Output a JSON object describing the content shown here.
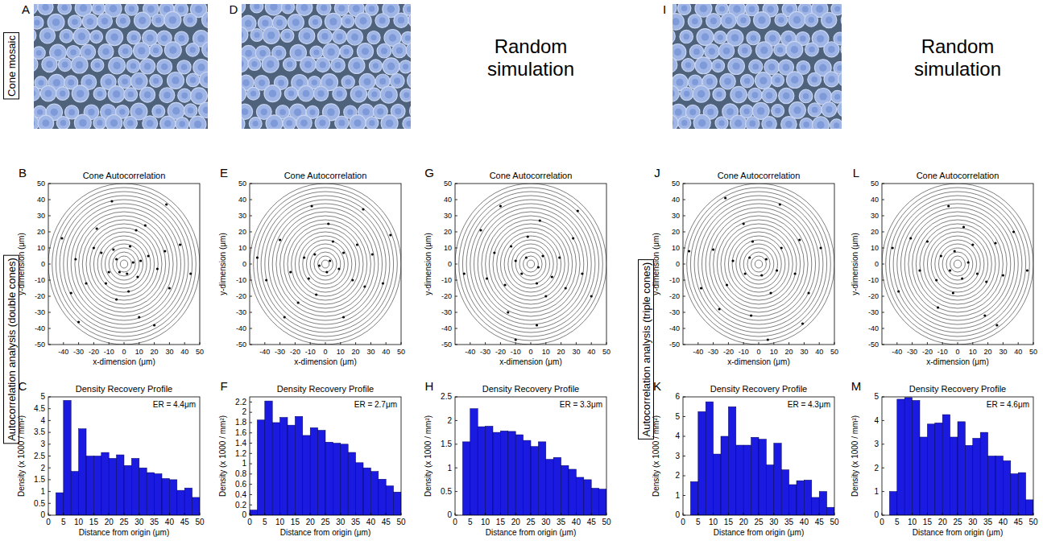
{
  "figure": {
    "image_letters": [
      "A",
      "D",
      "I"
    ],
    "chart_letters": [
      "B",
      "C",
      "E",
      "F",
      "G",
      "H",
      "J",
      "K",
      "L",
      "M"
    ],
    "side_labels": [
      "Cone mosaic",
      "Autocorrelation analysis (double cones)",
      "Autocorrelation analysis (triple cones)"
    ],
    "simulation_labels": [
      "Random simulation",
      "Random simulation"
    ]
  },
  "chart_data": [
    {
      "type": "scatter",
      "title": "Cone Autocorrelation",
      "xlabel": "x-dimension (μm)",
      "ylabel": "y-dimension (μm)",
      "xlim": [
        -50,
        50
      ],
      "ylim": [
        -50,
        50
      ],
      "xticks": [
        -40,
        -30,
        -20,
        -10,
        0,
        10,
        20,
        30,
        40,
        50
      ],
      "yticks": [
        -50,
        -40,
        -30,
        -20,
        -10,
        0,
        10,
        20,
        30,
        40,
        50
      ],
      "rings": [
        2.5,
        5,
        7.5,
        10,
        12.5,
        15,
        17.5,
        20,
        22.5,
        25,
        27.5,
        30,
        32.5,
        35,
        37.5,
        40,
        42.5,
        45,
        47.5,
        50
      ],
      "x": [
        6,
        -5,
        2,
        -3,
        11,
        -10,
        4,
        -7,
        9,
        16,
        -15,
        3,
        -12,
        22,
        -20,
        8,
        -5,
        27,
        -25,
        14,
        -18,
        30,
        -32,
        10,
        37,
        -35,
        -8,
        20,
        44,
        -41,
        28,
        -30
      ],
      "y": [
        1,
        3,
        -6,
        -5,
        2,
        -5,
        11,
        9,
        -8,
        5,
        7,
        -17,
        -12,
        -3,
        10,
        21,
        -22,
        8,
        -12,
        24,
        22,
        -15,
        3,
        -33,
        12,
        -18,
        39,
        -38,
        -6,
        16,
        37,
        -36
      ],
      "color": "#000000",
      "marker": "dot"
    },
    {
      "type": "histogram",
      "title": "Density Recovery Profile",
      "xlabel": "Distance from origin (μm)",
      "ylabel": "Density (x 1000 / mm²)",
      "annotation": "ER = 4.4μm",
      "bins": [
        0,
        2.5,
        5,
        7.5,
        10,
        12.5,
        15,
        17.5,
        20,
        22.5,
        25,
        27.5,
        30,
        32.5,
        35,
        37.5,
        40,
        42.5,
        45,
        47.5,
        50
      ],
      "values": [
        0,
        0.95,
        4.85,
        1.85,
        3.65,
        2.5,
        2.5,
        2.65,
        2.4,
        2.55,
        2.1,
        2.4,
        2.0,
        1.8,
        1.75,
        1.55,
        1.5,
        1.05,
        1.15,
        0.75
      ],
      "xlim": [
        0,
        50
      ],
      "ylim": [
        0,
        5
      ],
      "xticks": [
        0,
        5,
        10,
        15,
        20,
        25,
        30,
        35,
        40,
        45,
        50
      ],
      "yticks": [
        0,
        0.5,
        1,
        1.5,
        2,
        2.5,
        3,
        3.5,
        4,
        4.5,
        5
      ],
      "color": "#1a1ae0"
    },
    {
      "type": "scatter",
      "title": "Cone Autocorrelation",
      "xlabel": "x-dimension (μm)",
      "ylabel": "y-dimension (μm)",
      "xlim": [
        -50,
        50
      ],
      "ylim": [
        -50,
        50
      ],
      "xticks": [
        -40,
        -30,
        -20,
        -10,
        0,
        10,
        20,
        30,
        40,
        50
      ],
      "yticks": [
        -50,
        -40,
        -30,
        -20,
        -10,
        0,
        10,
        20,
        30,
        40,
        50
      ],
      "rings": [
        2.5,
        5,
        7.5,
        10,
        12.5,
        15,
        17.5,
        20,
        22.5,
        25,
        27.5,
        30,
        32.5,
        35,
        37.5,
        40,
        42.5,
        45,
        47.5,
        50
      ],
      "x": [
        3,
        -4,
        1,
        -7,
        9,
        12,
        -11,
        5,
        -14,
        18,
        -6,
        21,
        -23,
        2,
        26,
        -18,
        31,
        -30,
        12,
        -9,
        38,
        -39,
        25,
        -27,
        43,
        -45
      ],
      "y": [
        2,
        -1,
        -5,
        6,
        -3,
        7,
        -9,
        14,
        4,
        -10,
        -19,
        12,
        -5,
        25,
        -14,
        -24,
        6,
        15,
        -33,
        36,
        -12,
        -10,
        34,
        -33,
        18,
        4
      ],
      "color": "#000000",
      "marker": "dot"
    },
    {
      "type": "histogram",
      "title": "Density Recovery Profile",
      "xlabel": "Distance from origin (μm)",
      "ylabel": "Density (x 1000 / mm²)",
      "annotation": "ER = 2.7μm",
      "bins": [
        0,
        2.5,
        5,
        7.5,
        10,
        12.5,
        15,
        17.5,
        20,
        22.5,
        25,
        27.5,
        30,
        32.5,
        35,
        37.5,
        40,
        42.5,
        45,
        47.5,
        50
      ],
      "values": [
        0.1,
        1.85,
        2.22,
        1.8,
        1.9,
        1.75,
        1.92,
        1.55,
        1.7,
        1.65,
        1.42,
        1.4,
        1.38,
        1.22,
        1.02,
        0.92,
        0.85,
        0.7,
        0.57,
        0.45
      ],
      "xlim": [
        0,
        50
      ],
      "ylim": [
        0,
        2.3
      ],
      "xticks": [
        0,
        5,
        10,
        15,
        20,
        25,
        30,
        35,
        40,
        45,
        50
      ],
      "yticks": [
        0,
        0.2,
        0.4,
        0.6,
        0.8,
        1,
        1.2,
        1.4,
        1.6,
        1.8,
        2,
        2.2
      ],
      "color": "#1a1ae0"
    },
    {
      "type": "scatter",
      "title": "Cone Autocorrelation",
      "xlabel": "x-dimension (μm)",
      "ylabel": "y-dimension (μm)",
      "xlim": [
        -50,
        50
      ],
      "ylim": [
        -50,
        50
      ],
      "xticks": [
        -40,
        -30,
        -20,
        -10,
        0,
        10,
        20,
        30,
        40,
        50
      ],
      "yticks": [
        -50,
        -40,
        -30,
        -20,
        -10,
        0,
        10,
        20,
        30,
        40,
        50
      ],
      "rings": [
        2.5,
        5,
        7.5,
        10,
        12.5,
        15,
        17.5,
        20,
        22.5,
        25,
        27.5,
        30,
        32.5,
        35,
        37.5,
        40,
        42.5,
        45,
        47.5,
        50
      ],
      "x": [
        -3,
        5,
        -6,
        8,
        -10,
        4,
        14,
        -13,
        -2,
        19,
        -17,
        10,
        -24,
        23,
        6,
        -29,
        28,
        -15,
        34,
        -33,
        4,
        -20,
        40,
        -44,
        31,
        -10
      ],
      "y": [
        4,
        -2,
        -6,
        5,
        2,
        -12,
        -8,
        11,
        17,
        4,
        -13,
        -20,
        7,
        -15,
        27,
        -9,
        16,
        -30,
        -6,
        21,
        -38,
        36,
        -20,
        -6,
        33,
        -47
      ],
      "color": "#000000",
      "marker": "dot"
    },
    {
      "type": "histogram",
      "title": "Density Recovery Profile",
      "xlabel": "Distance from origin (μm)",
      "ylabel": "Density (x 1000 / mm²)",
      "annotation": "ER = 3.3μm",
      "bins": [
        0,
        2.5,
        5,
        7.5,
        10,
        12.5,
        15,
        17.5,
        20,
        22.5,
        25,
        27.5,
        30,
        32.5,
        35,
        37.5,
        40,
        42.5,
        45,
        47.5,
        50
      ],
      "values": [
        0,
        1.55,
        2.25,
        1.87,
        1.88,
        1.75,
        1.78,
        1.77,
        1.7,
        1.58,
        1.45,
        1.55,
        1.18,
        1.22,
        1.05,
        0.97,
        0.8,
        0.75,
        0.57,
        0.55
      ],
      "xlim": [
        0,
        50
      ],
      "ylim": [
        0,
        2.5
      ],
      "xticks": [
        0,
        5,
        10,
        15,
        20,
        25,
        30,
        35,
        40,
        45,
        50
      ],
      "yticks": [
        0,
        0.5,
        1,
        1.5,
        2,
        2.5
      ],
      "color": "#1a1ae0"
    },
    {
      "type": "scatter",
      "title": "Cone Autocorrelation",
      "xlabel": "x-dimension (μm)",
      "ylabel": "y-dimension (μm)",
      "xlim": [
        -50,
        50
      ],
      "ylim": [
        -50,
        50
      ],
      "xticks": [
        -40,
        -30,
        -20,
        -10,
        0,
        10,
        20,
        30,
        40,
        50
      ],
      "yticks": [
        -50,
        -40,
        -30,
        -20,
        -10,
        0,
        10,
        20,
        30,
        40,
        50
      ],
      "rings": [
        2.5,
        5,
        7.5,
        10,
        12.5,
        15,
        17.5,
        20,
        22.5,
        25,
        27.5,
        30,
        32.5,
        35,
        37.5,
        40,
        42.5,
        45,
        47.5,
        50
      ],
      "x": [
        5,
        -6,
        2,
        -9,
        12,
        -4,
        15,
        -17,
        8,
        -21,
        24,
        -10,
        27,
        -30,
        -5,
        33,
        -26,
        14,
        -38,
        41,
        -22,
        29,
        -46,
        6
      ],
      "y": [
        3,
        4,
        -7,
        -6,
        -4,
        14,
        10,
        2,
        -18,
        -13,
        -6,
        25,
        15,
        9,
        -32,
        -18,
        -28,
        37,
        -15,
        10,
        41,
        -37,
        8,
        -47
      ],
      "color": "#000000",
      "marker": "dot"
    },
    {
      "type": "histogram",
      "title": "Density Recovery Profile",
      "xlabel": "Distance from origin (μm)",
      "ylabel": "Density (x 1000 / mm²)",
      "annotation": "ER = 4.3μm",
      "bins": [
        0,
        2.5,
        5,
        7.5,
        10,
        12.5,
        15,
        17.5,
        20,
        22.5,
        25,
        27.5,
        30,
        32.5,
        35,
        37.5,
        40,
        42.5,
        45,
        47.5,
        50
      ],
      "values": [
        0,
        1.7,
        5.25,
        5.75,
        3.1,
        4.0,
        5.5,
        3.55,
        3.55,
        3.95,
        3.85,
        2.55,
        3.65,
        2.3,
        1.55,
        1.75,
        1.78,
        0.9,
        1.2,
        0.4
      ],
      "xlim": [
        0,
        50
      ],
      "ylim": [
        0,
        6
      ],
      "xticks": [
        0,
        5,
        10,
        15,
        20,
        25,
        30,
        35,
        40,
        45,
        50
      ],
      "yticks": [
        0,
        1,
        2,
        3,
        4,
        5,
        6
      ],
      "color": "#1a1ae0"
    },
    {
      "type": "scatter",
      "title": "Cone Autocorrelation",
      "xlabel": "x-dimension (μm)",
      "ylabel": "y-dimension (μm)",
      "xlim": [
        -50,
        50
      ],
      "ylim": [
        -50,
        50
      ],
      "xticks": [
        -40,
        -30,
        -20,
        -10,
        0,
        10,
        20,
        30,
        40,
        50
      ],
      "yticks": [
        -50,
        -40,
        -30,
        -20,
        -10,
        0,
        10,
        20,
        30,
        40,
        50
      ],
      "rings": [
        2.5,
        5,
        7.5,
        10,
        12.5,
        15,
        17.5,
        20,
        22.5,
        25,
        27.5,
        30,
        32.5,
        35,
        37.5,
        40,
        42.5,
        45,
        47.5,
        50
      ],
      "x": [
        -5,
        7,
        -2,
        3,
        -11,
        13,
        10,
        -14,
        -3,
        19,
        -20,
        4,
        -25,
        25,
        -13,
        30,
        -31,
        18,
        -6,
        37,
        -39,
        26,
        -43,
        46
      ],
      "y": [
        -4,
        1,
        8,
        -9,
        5,
        -6,
        12,
        -10,
        -18,
        -11,
        14,
        23,
        -4,
        13,
        -27,
        -7,
        16,
        -32,
        36,
        20,
        -17,
        -38,
        10,
        -4
      ],
      "color": "#000000",
      "marker": "dot"
    },
    {
      "type": "histogram",
      "title": "Density Recovery Profile",
      "xlabel": "Distance from origin (μm)",
      "ylabel": "Density (x 1000 / mm²)",
      "annotation": "ER = 4.6μm",
      "bins": [
        0,
        2.5,
        5,
        7.5,
        10,
        12.5,
        15,
        17.5,
        20,
        22.5,
        25,
        27.5,
        30,
        32.5,
        35,
        37.5,
        40,
        42.5,
        45,
        47.5,
        50
      ],
      "values": [
        0,
        1.0,
        4.9,
        4.97,
        4.85,
        3.3,
        3.85,
        3.9,
        4.25,
        3.3,
        3.95,
        2.95,
        3.25,
        3.5,
        2.5,
        2.5,
        2.3,
        1.75,
        1.8,
        0.65
      ],
      "xlim": [
        0,
        50
      ],
      "ylim": [
        0,
        5
      ],
      "xticks": [
        0,
        5,
        10,
        15,
        20,
        25,
        30,
        35,
        40,
        45,
        50
      ],
      "yticks": [
        0,
        1,
        2,
        3,
        4,
        5
      ],
      "color": "#1a1ae0"
    }
  ]
}
